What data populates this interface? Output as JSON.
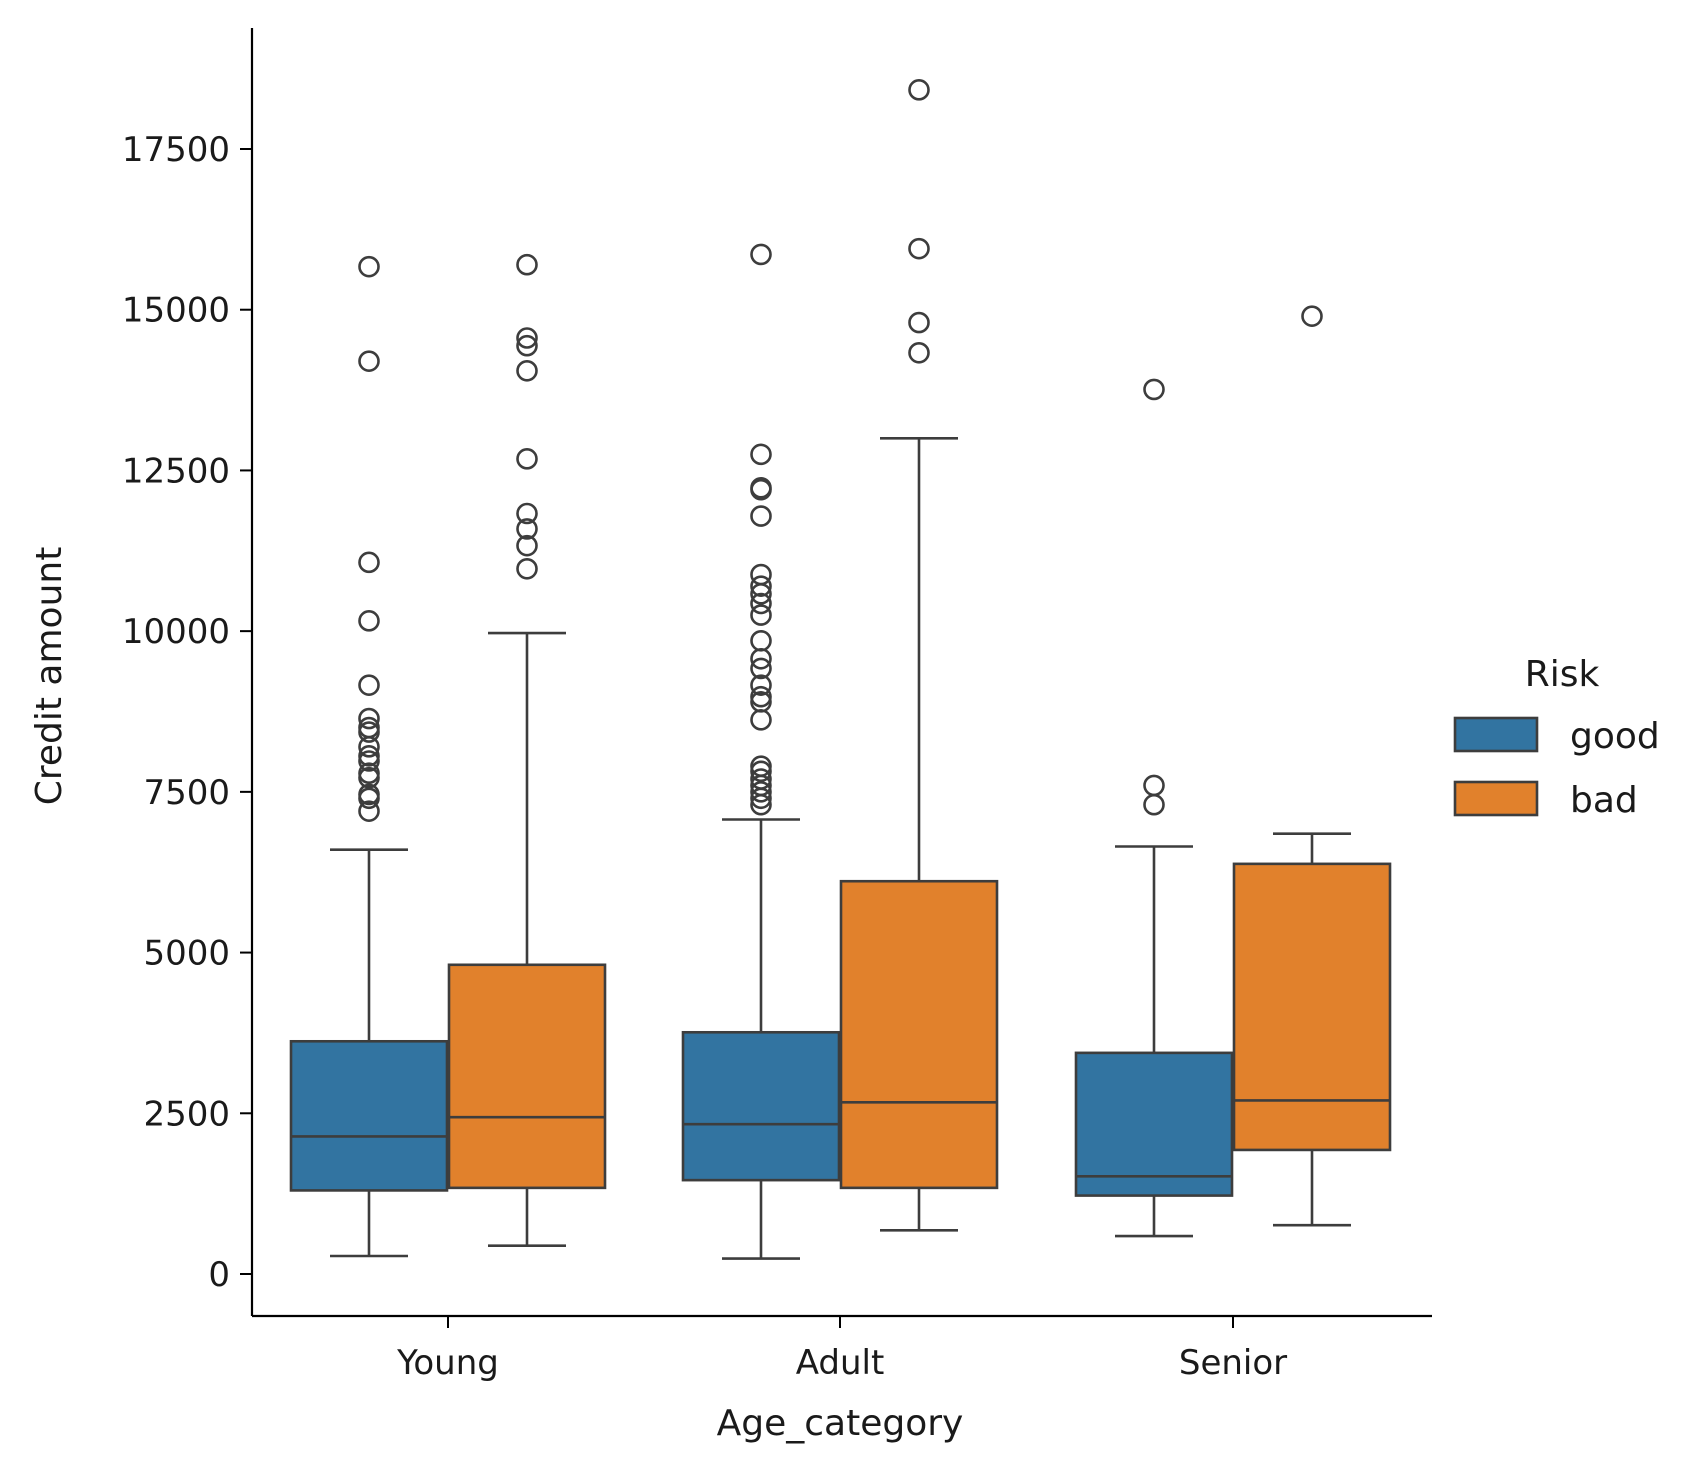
{
  "chart_data": {
    "type": "box",
    "xlabel": "Age_category",
    "ylabel": "Credit amount",
    "categories": [
      "Young",
      "Adult",
      "Senior"
    ],
    "ylim": [
      -700,
      19300
    ],
    "yticks": [
      0,
      2500,
      5000,
      7500,
      10000,
      12500,
      15000,
      17500
    ],
    "legend": {
      "title": "Risk",
      "placement": "right"
    },
    "colors": {
      "good": "#3274a1",
      "bad": "#e1812c",
      "edge": "#3d3d3d"
    },
    "series": [
      {
        "name": "good",
        "boxes": [
          {
            "category": "Young",
            "whisker_low": 280,
            "q1": 1300,
            "median": 2140,
            "q3": 3620,
            "whisker_high": 6600,
            "outliers": [
              15670,
              14200,
              11070,
              10160,
              9160,
              8640,
              8500,
              8430,
              8200,
              8060,
              7980,
              7790,
              7720,
              7460,
              7400,
              7200
            ]
          },
          {
            "category": "Adult",
            "whisker_low": 240,
            "q1": 1460,
            "median": 2330,
            "q3": 3760,
            "whisker_high": 7070,
            "outliers": [
              15860,
              12750,
              12230,
              12200,
              11790,
              10880,
              10700,
              10580,
              10430,
              10250,
              9850,
              9570,
              9420,
              9160,
              8980,
              8900,
              8620,
              7900,
              7820,
              7700,
              7600,
              7500,
              7400,
              7300
            ]
          },
          {
            "category": "Senior",
            "whisker_low": 590,
            "q1": 1220,
            "median": 1520,
            "q3": 3440,
            "whisker_high": 6650,
            "outliers": [
              13760,
              7600,
              7300
            ]
          }
        ]
      },
      {
        "name": "bad",
        "boxes": [
          {
            "category": "Young",
            "whisker_low": 440,
            "q1": 1340,
            "median": 2440,
            "q3": 4810,
            "whisker_high": 9970,
            "outliers": [
              15700,
              14560,
              14440,
              14050,
              12680,
              11830,
              11590,
              11330,
              10970
            ]
          },
          {
            "category": "Adult",
            "whisker_low": 680,
            "q1": 1340,
            "median": 2670,
            "q3": 6110,
            "whisker_high": 13000,
            "outliers": [
              18420,
              15950,
              14800,
              14330
            ]
          },
          {
            "category": "Senior",
            "whisker_low": 760,
            "q1": 1930,
            "median": 2700,
            "q3": 6380,
            "whisker_high": 6850,
            "outliers": [
              14900
            ]
          }
        ]
      }
    ]
  }
}
